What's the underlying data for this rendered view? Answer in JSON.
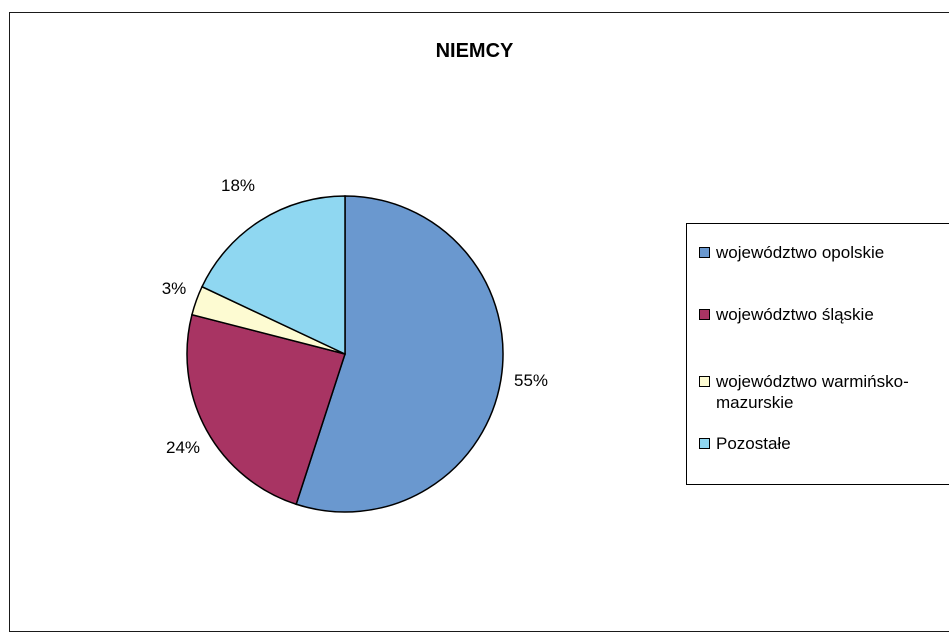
{
  "chart_data": {
    "type": "pie",
    "title": "NIEMCY",
    "categories": [
      "województwo opolskie",
      "województwo śląskie",
      "województwo warmińsko-mazurskie",
      "Pozostałe"
    ],
    "values": [
      55,
      24,
      3,
      18
    ],
    "labels": [
      "55%",
      "24%",
      "3%",
      "18%"
    ],
    "colors": [
      "#6a98cf",
      "#a83463",
      "#fdfbd2",
      "#8fd7f1"
    ],
    "start_angle": "12 o'clock, clockwise",
    "legend": "right"
  }
}
